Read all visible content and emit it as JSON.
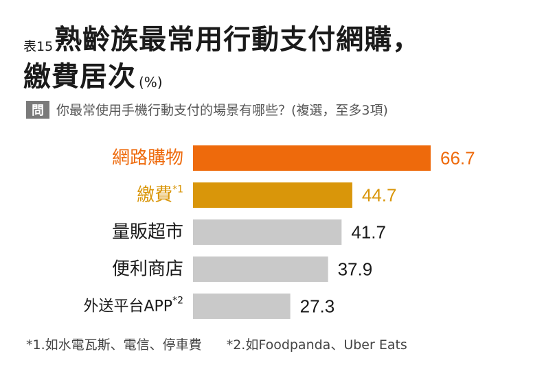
{
  "header": {
    "table_label": "表15",
    "title_line1": "熟齡族最常用行動支付網購，",
    "title_line2": "繳費居次",
    "unit": "(%)"
  },
  "question": {
    "badge": "問",
    "text": "你最常使用手機行動支付的場景有哪些？(複選，至多3項)"
  },
  "chart_data": {
    "type": "bar",
    "orientation": "horizontal",
    "categories": [
      "網路購物",
      "繳費",
      "量販超市",
      "便利商店",
      "外送平台APP"
    ],
    "category_marks": [
      "",
      "*1",
      "",
      "",
      "*2"
    ],
    "values": [
      66.7,
      44.7,
      41.7,
      37.9,
      27.3
    ],
    "value_labels": [
      "66.7",
      "44.7",
      "41.7",
      "37.9",
      "27.3"
    ],
    "colors": [
      "#ee6a0c",
      "#d9960a",
      "#c9c9c9",
      "#c9c9c9",
      "#c9c9c9"
    ],
    "label_colors": [
      "#ee6a0c",
      "#d9960a",
      "#1a1a1a",
      "#1a1a1a",
      "#1a1a1a"
    ],
    "value_colors": [
      "#ee6a0c",
      "#d9960a",
      "#1a1a1a",
      "#1a1a1a",
      "#1a1a1a"
    ],
    "xlim": [
      0,
      66.7
    ],
    "grid": false,
    "legend": "none"
  },
  "footnotes": {
    "note1": "*1.如水電瓦斯、電信、停車費",
    "note2": "*2.如Foodpanda、Uber Eats"
  }
}
